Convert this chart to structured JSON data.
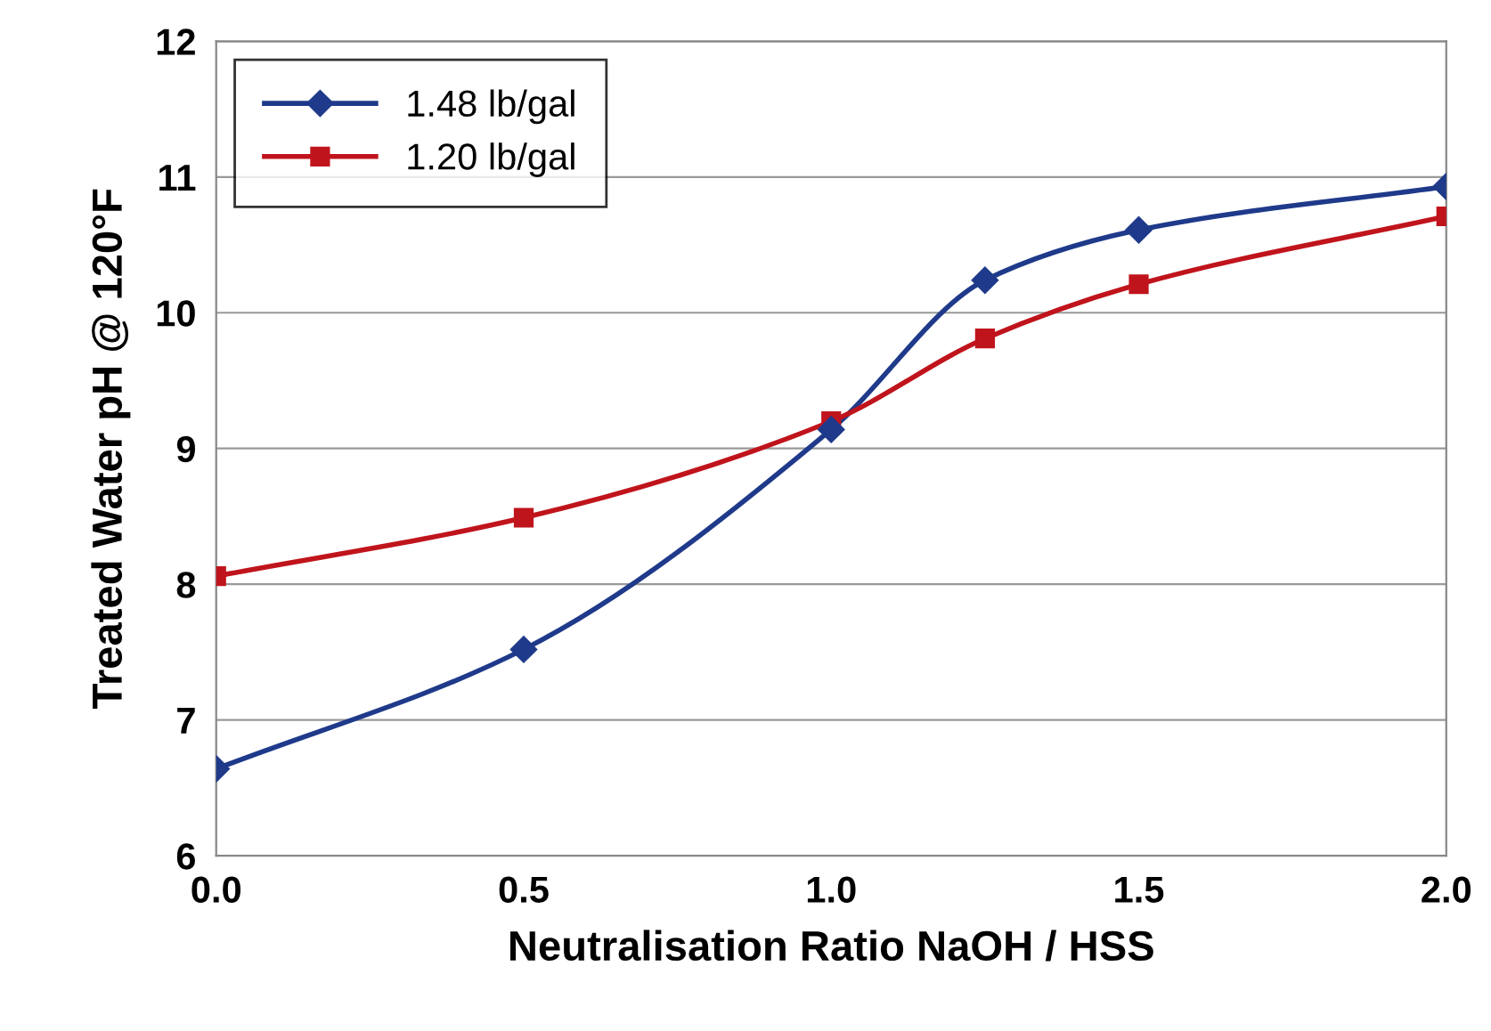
{
  "chart_data": {
    "type": "line",
    "xlabel": "Neutralisation Ratio NaOH / HSS",
    "ylabel": "Treated Water pH @ 120°F",
    "x": [
      0,
      0.5,
      1.0,
      1.25,
      1.5,
      2.0
    ],
    "series": [
      {
        "name": "1.48 lb/gal",
        "color": "#1f3a8a",
        "marker": "diamond",
        "values": [
          6.64,
          7.52,
          9.14,
          10.24,
          10.61,
          10.93
        ]
      },
      {
        "name": "1.20 lb/gal",
        "color": "#c0141c",
        "marker": "square",
        "values": [
          8.06,
          8.49,
          9.2,
          9.81,
          10.21,
          10.71
        ]
      }
    ],
    "xlim": [
      0,
      2
    ],
    "ylim": [
      6,
      12
    ],
    "xticks": [
      {
        "value": 0,
        "label": "0.0"
      },
      {
        "value": 0.5,
        "label": "0.5"
      },
      {
        "value": 1.0,
        "label": "1.0"
      },
      {
        "value": 1.5,
        "label": "1.5"
      },
      {
        "value": 2.0,
        "label": "2.0"
      }
    ],
    "yticks": [
      6,
      7,
      8,
      9,
      10,
      11,
      12
    ],
    "grid": "y",
    "legend": "top left",
    "line_style": "solid"
  }
}
